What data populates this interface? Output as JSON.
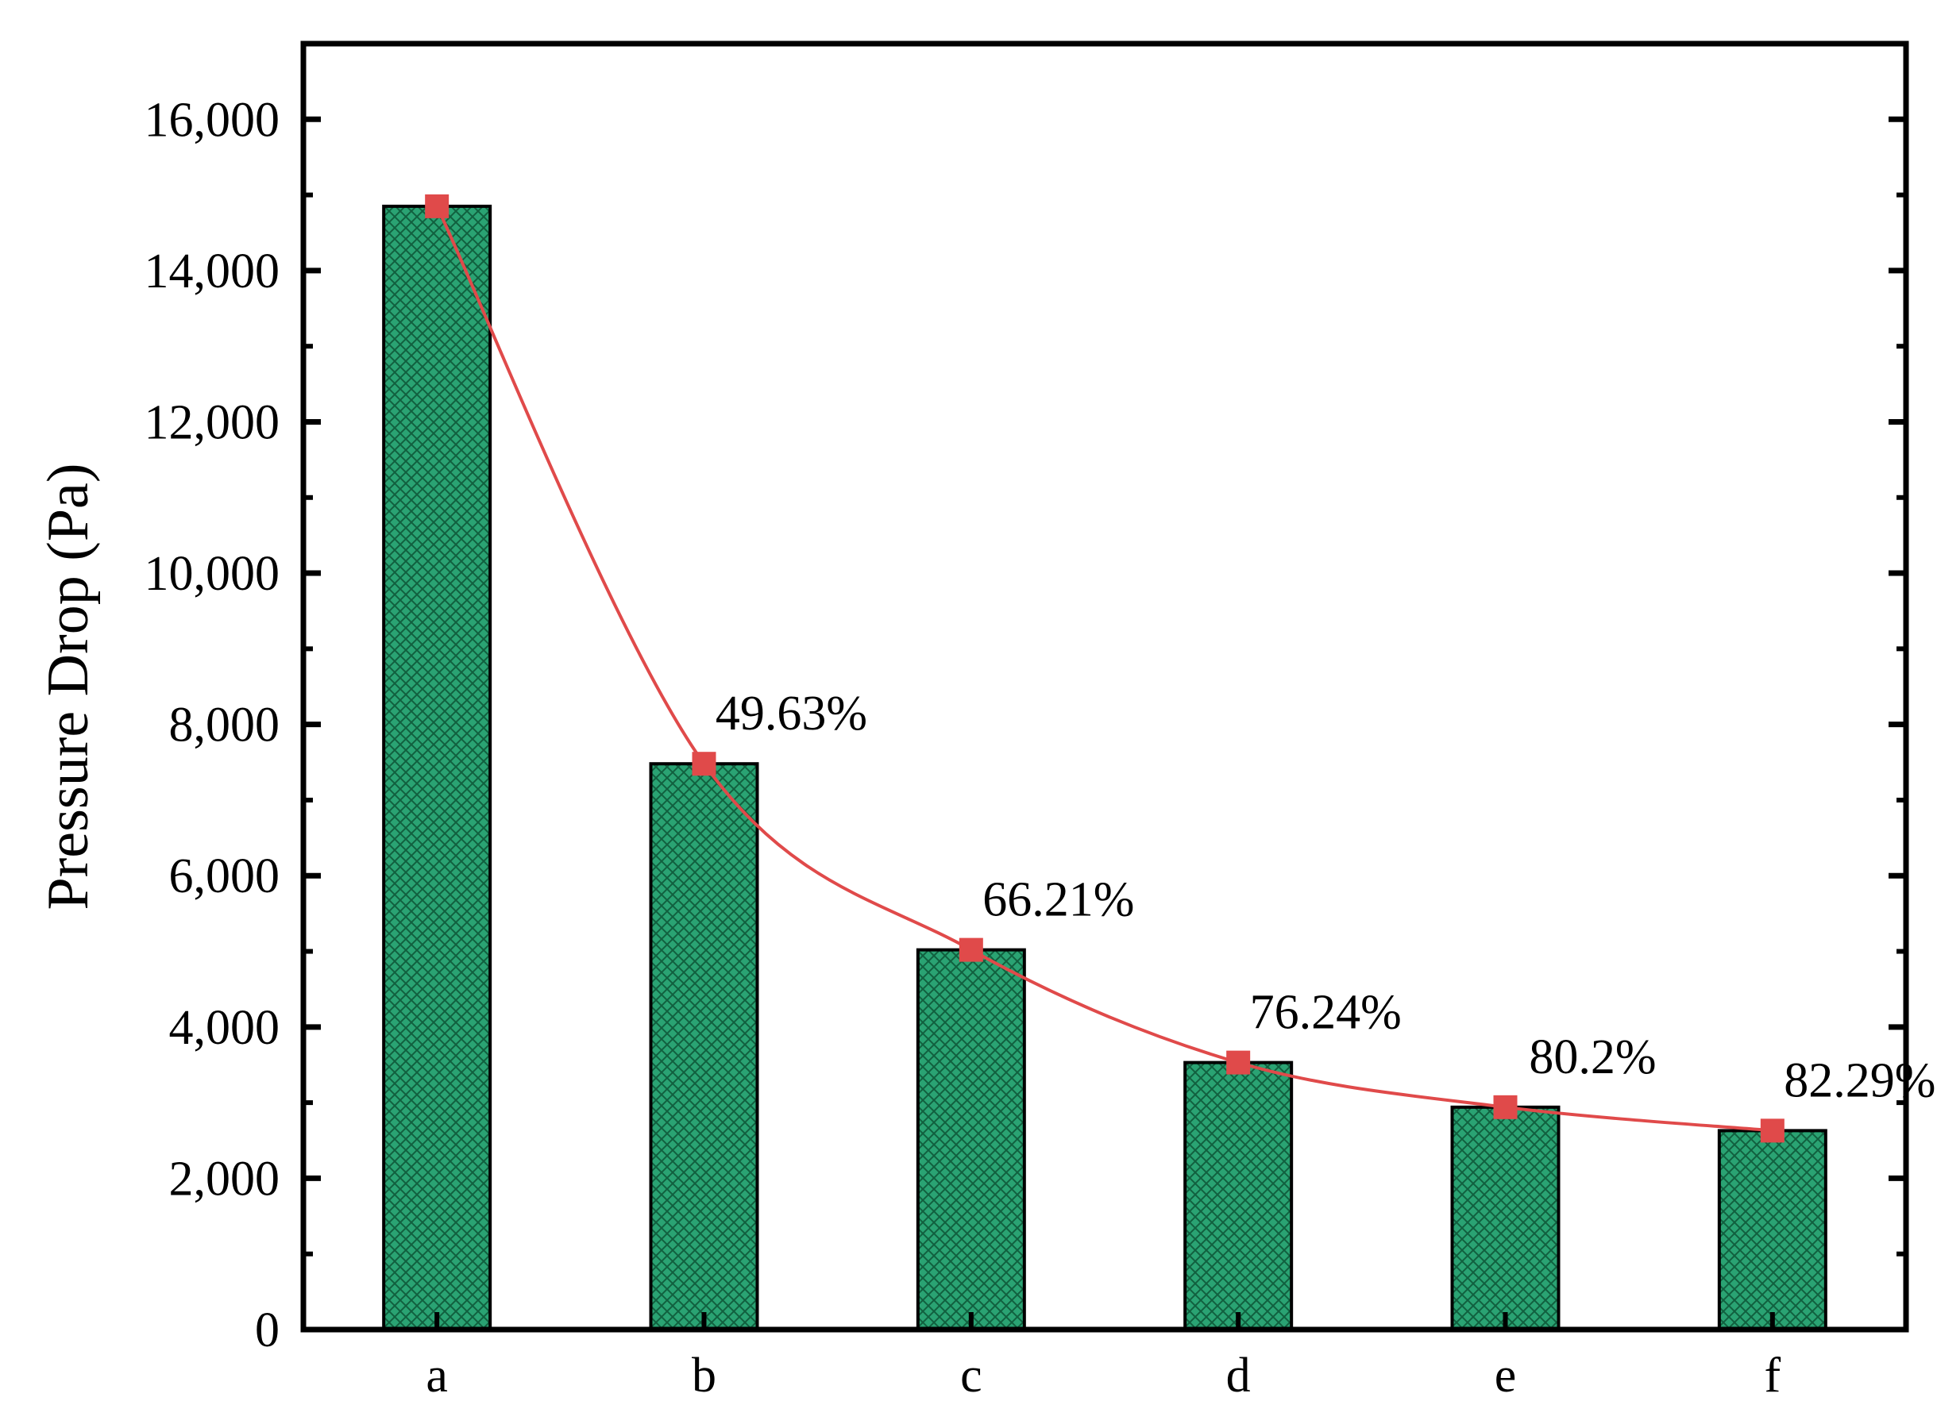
{
  "chart_data": {
    "type": "bar",
    "categories": [
      "a",
      "b",
      "c",
      "d",
      "e",
      "f"
    ],
    "series": [
      {
        "kind": "bar",
        "values": [
          14850,
          7480,
          5020,
          3530,
          2940,
          2630
        ],
        "color": "#2aa373"
      },
      {
        "kind": "line",
        "values": [
          14850,
          7480,
          5020,
          3530,
          2940,
          2630
        ],
        "color": "#e04a4a"
      }
    ],
    "annotations": [
      "",
      "49.63%",
      "66.21%",
      "76.24%",
      "80.2%",
      "82.29%"
    ],
    "ylabel": "Pressure Drop (Pa)",
    "xlabel": "",
    "ylim": [
      0,
      17000
    ],
    "yticks": [
      0,
      2000,
      4000,
      6000,
      8000,
      10000,
      12000,
      14000,
      16000
    ],
    "ytick_labels": [
      "0",
      "2,000",
      "4,000",
      "6,000",
      "8,000",
      "10,000",
      "12,000",
      "14,000",
      "16,000"
    ],
    "grid": false,
    "legend": "none"
  }
}
